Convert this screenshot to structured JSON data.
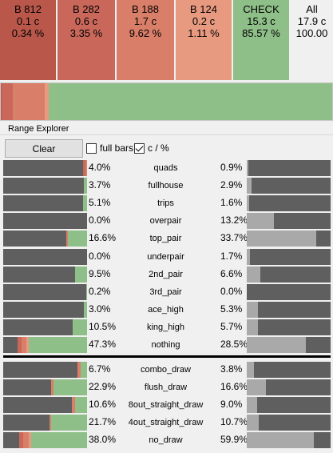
{
  "colors": {
    "b812": "#b9584a",
    "b282": "#c9685a",
    "b188": "#d97e68",
    "b124": "#e89a80",
    "check": "#8fbf88",
    "bar_bg": "#5f5f5f",
    "bar_fill": "#a9a9a9"
  },
  "tiles": [
    {
      "name": "B 812",
      "combos": "0.1 c",
      "pct": "0.34 %",
      "color": "#b9584a"
    },
    {
      "name": "B 282",
      "combos": "0.6 c",
      "pct": "3.35 %",
      "color": "#c9685a"
    },
    {
      "name": "B 188",
      "combos": "1.7 c",
      "pct": "9.62 %",
      "color": "#d97e68"
    },
    {
      "name": "B 124",
      "combos": "0.2 c",
      "pct": "1.11 %",
      "color": "#e89a80"
    },
    {
      "name": "CHECK",
      "combos": "15.3 c",
      "pct": "85.57 %",
      "color": "#8fbf88"
    },
    {
      "name": "All",
      "combos": "17.9 c",
      "pct": "100.00",
      "color": "#f0f0f0"
    }
  ],
  "frequency": [
    0.0034,
    0.0335,
    0.0962,
    0.0111,
    0.8557
  ],
  "section_label": "Range Explorer",
  "toolbar": {
    "clear_label": "Clear",
    "full_bars_label": "full bars",
    "full_bars_checked": false,
    "c_pct_label": "c / %",
    "c_pct_checked": true
  },
  "rows_top": [
    {
      "cat": "quads",
      "left_pct": "4.0%",
      "right_pct": "0.9%",
      "freq": [
        0.0,
        0.03,
        0.02,
        0.0,
        0.0
      ],
      "right_fill": 0.02
    },
    {
      "cat": "fullhouse",
      "left_pct": "3.7%",
      "right_pct": "2.9%",
      "freq": [
        0.0,
        0.0,
        0.0,
        0.0,
        0.04
      ],
      "right_fill": 0.06
    },
    {
      "cat": "trips",
      "left_pct": "5.1%",
      "right_pct": "1.6%",
      "freq": [
        0.0,
        0.0,
        0.0,
        0.0,
        0.05
      ],
      "right_fill": 0.03
    },
    {
      "cat": "overpair",
      "left_pct": "0.0%",
      "right_pct": "13.2%",
      "freq": [
        0.0,
        0.0,
        0.0,
        0.0,
        0.0
      ],
      "right_fill": 0.32
    },
    {
      "cat": "top_pair",
      "left_pct": "16.6%",
      "right_pct": "33.7%",
      "freq": [
        0.0,
        0.0,
        0.02,
        0.0,
        0.23
      ],
      "right_fill": 0.83
    },
    {
      "cat": "underpair",
      "left_pct": "0.0%",
      "right_pct": "1.7%",
      "freq": [
        0.0,
        0.0,
        0.0,
        0.0,
        0.0
      ],
      "right_fill": 0.04
    },
    {
      "cat": "2nd_pair",
      "left_pct": "9.5%",
      "right_pct": "6.6%",
      "freq": [
        0.0,
        0.0,
        0.0,
        0.0,
        0.14
      ],
      "right_fill": 0.16
    },
    {
      "cat": "3rd_pair",
      "left_pct": "0.2%",
      "right_pct": "0.0%",
      "freq": [
        0.0,
        0.0,
        0.0,
        0.0,
        0.01
      ],
      "right_fill": 0.0
    },
    {
      "cat": "ace_high",
      "left_pct": "3.0%",
      "right_pct": "5.3%",
      "freq": [
        0.0,
        0.0,
        0.0,
        0.0,
        0.04
      ],
      "right_fill": 0.13
    },
    {
      "cat": "king_high",
      "left_pct": "10.5%",
      "right_pct": "5.7%",
      "freq": [
        0.0,
        0.0,
        0.0,
        0.0,
        0.17
      ],
      "right_fill": 0.13
    },
    {
      "cat": "nothing",
      "left_pct": "47.3%",
      "right_pct": "28.5%",
      "freq": [
        0.0,
        0.05,
        0.06,
        0.02,
        0.7
      ],
      "right_fill": 0.7
    }
  ],
  "rows_bottom": [
    {
      "cat": "combo_draw",
      "left_pct": "6.7%",
      "right_pct": "3.8%",
      "freq": [
        0.0,
        0.0,
        0.03,
        0.0,
        0.08
      ],
      "right_fill": 0.09
    },
    {
      "cat": "flush_draw",
      "left_pct": "22.9%",
      "right_pct": "16.6%",
      "freq": [
        0.0,
        0.0,
        0.03,
        0.0,
        0.4
      ],
      "right_fill": 0.23
    },
    {
      "cat": "8out_straight_draw",
      "left_pct": "10.6%",
      "right_pct": "9.0%",
      "freq": [
        0.0,
        0.0,
        0.04,
        0.0,
        0.14
      ],
      "right_fill": 0.12
    },
    {
      "cat": "4out_straight_draw",
      "left_pct": "21.7%",
      "right_pct": "10.7%",
      "freq": [
        0.0,
        0.0,
        0.02,
        0.0,
        0.43
      ],
      "right_fill": 0.14
    },
    {
      "cat": "no_draw",
      "left_pct": "38.0%",
      "right_pct": "59.9%",
      "freq": [
        0.0,
        0.05,
        0.06,
        0.03,
        0.67
      ],
      "right_fill": 0.8
    }
  ]
}
